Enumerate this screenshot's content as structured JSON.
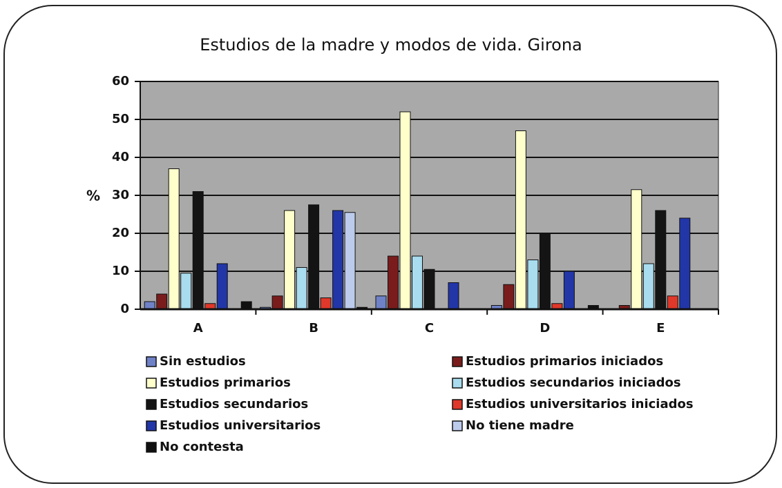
{
  "chart_data": {
    "type": "bar",
    "title": "Estudios de la madre y modos de vida. Girona",
    "y_label": "%",
    "categories": [
      "A",
      "B",
      "C",
      "D",
      "E"
    ],
    "ylim": [
      0,
      60
    ],
    "yticks": [
      0,
      10,
      20,
      30,
      40,
      50,
      60
    ],
    "grid": true,
    "series": [
      {
        "name": "Sin estudios",
        "color": "#6f82c8",
        "values": [
          2,
          0.5,
          3.5,
          1,
          0
        ]
      },
      {
        "name": "Estudios primarios iniciados",
        "color": "#7a1c1c",
        "values": [
          4,
          3.5,
          14,
          6.5,
          1
        ]
      },
      {
        "name": "Estudios primarios",
        "color": "#ffffcc",
        "values": [
          37,
          26,
          52,
          47,
          31.5
        ]
      },
      {
        "name": "Estudios secundarios iniciados",
        "color": "#a8dcee",
        "values": [
          9.5,
          11,
          14,
          13,
          12
        ]
      },
      {
        "name": "Estudios secundarios",
        "color": "#141414",
        "values": [
          31,
          27.5,
          10.5,
          20,
          26
        ]
      },
      {
        "name": "Estudios universitarios iniciados",
        "color": "#e0382a",
        "values": [
          1.5,
          3,
          0,
          1.5,
          3.5
        ]
      },
      {
        "name": "Estudios universitarios",
        "color": "#2236a8",
        "values": [
          12,
          26,
          7,
          10,
          24
        ]
      },
      {
        "name": "No tiene madre",
        "color": "#bccbec",
        "values": [
          0,
          25.5,
          0,
          0,
          0
        ]
      },
      {
        "name": "No contesta",
        "color": "#101010",
        "values": [
          2,
          0.5,
          0,
          1,
          0
        ]
      }
    ]
  }
}
